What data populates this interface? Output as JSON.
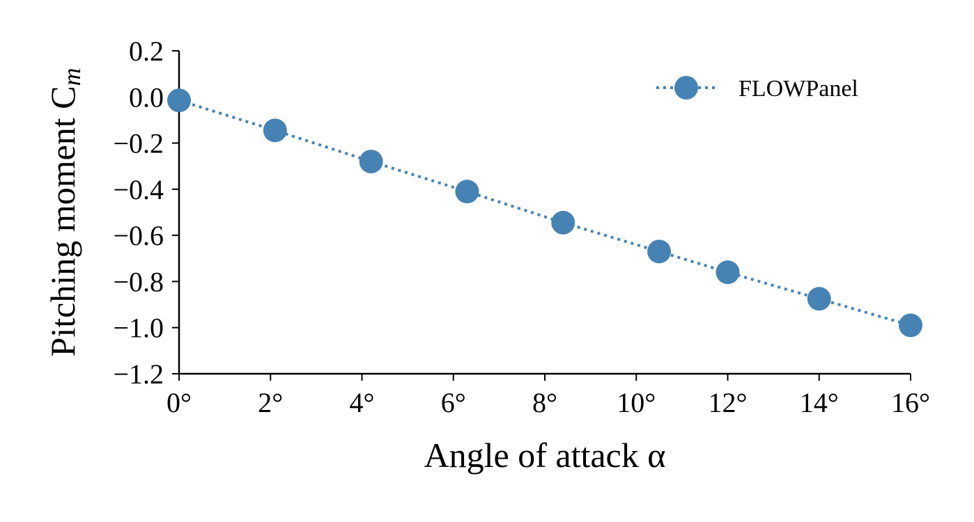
{
  "chart_data": {
    "type": "line",
    "x": [
      0,
      2.1,
      4.2,
      6.3,
      8.4,
      10.5,
      12,
      14,
      16
    ],
    "series": [
      {
        "name": "FLOWPanel",
        "values": [
          -0.015,
          -0.145,
          -0.28,
          -0.41,
          -0.545,
          -0.67,
          -0.76,
          -0.875,
          -0.99
        ],
        "color": "#4682b4",
        "line_style": "dotted",
        "marker": "circle"
      }
    ],
    "xlabel": "Angle of attack α",
    "ylabel": "Pitching moment C",
    "ylabel_subscript": "m",
    "xlim": [
      0,
      16
    ],
    "ylim": [
      -1.2,
      0.2
    ],
    "xticks": [
      0,
      2,
      4,
      6,
      8,
      10,
      12,
      14,
      16
    ],
    "xtick_labels": [
      "0°",
      "2°",
      "4°",
      "6°",
      "8°",
      "10°",
      "12°",
      "14°",
      "16°"
    ],
    "yticks": [
      0.2,
      0.0,
      -0.2,
      -0.4,
      -0.6,
      -0.8,
      -1.0,
      -1.2
    ],
    "ytick_labels": [
      "0.2",
      "0.0",
      "−0.2",
      "−0.4",
      "−0.6",
      "−0.8",
      "−1.0",
      "−1.2"
    ],
    "grid": false,
    "legend": "top-right",
    "spines": "left-bottom"
  }
}
